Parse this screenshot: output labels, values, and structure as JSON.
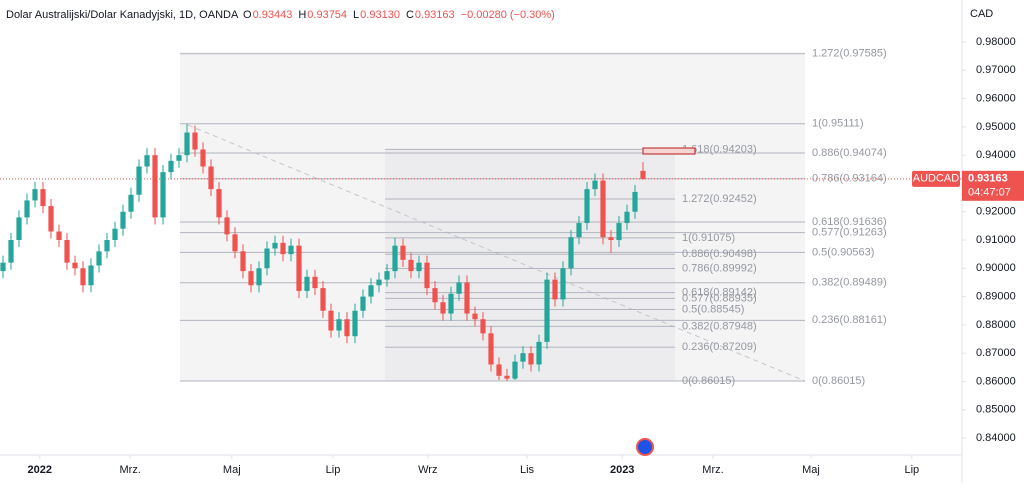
{
  "header": {
    "symbol": "Dolar Australijski/Dolar Kanadyjski, 1D, OANDA",
    "ohlc": [
      {
        "key": "O",
        "value": "0.93443"
      },
      {
        "key": "H",
        "value": "0.93754"
      },
      {
        "key": "L",
        "value": "0.93130"
      },
      {
        "key": "C",
        "value": "0.93163"
      }
    ],
    "change": "−0.00280 (−0.30%)"
  },
  "chart_data": {
    "type": "candlestick",
    "currency": "CAD",
    "up_color": "#26a69a",
    "down_color": "#ef5350",
    "grid": false,
    "categories": [
      null,
      null,
      null,
      null,
      null,
      null,
      null,
      null,
      null,
      null,
      null,
      null,
      null,
      null,
      null,
      null,
      null,
      null,
      null,
      null,
      null,
      null,
      null,
      null,
      null,
      null,
      null,
      null,
      null,
      null,
      null,
      null,
      null,
      null,
      null,
      null,
      null,
      null,
      null,
      null,
      null,
      null,
      null,
      null,
      null,
      null,
      null,
      null,
      null,
      null,
      null,
      null,
      null,
      null,
      null,
      null,
      null,
      null,
      null,
      null,
      null,
      null,
      null,
      null,
      null,
      null,
      null,
      null,
      null,
      null,
      null,
      null,
      null,
      null,
      null,
      null,
      null,
      null,
      null,
      null,
      null
    ],
    "open": [
      0.899,
      0.902,
      0.91,
      0.918,
      0.924,
      0.928,
      0.922,
      0.913,
      0.91,
      0.902,
      0.9,
      0.894,
      0.901,
      0.906,
      0.91,
      0.914,
      0.92,
      0.926,
      0.936,
      0.94,
      0.918,
      0.934,
      0.938,
      0.94,
      0.948,
      0.942,
      0.936,
      0.928,
      0.918,
      0.912,
      0.906,
      0.899,
      0.894,
      0.9,
      0.907,
      0.909,
      0.905,
      0.908,
      0.892,
      0.897,
      0.893,
      0.885,
      0.878,
      0.882,
      0.876,
      0.885,
      0.89,
      0.894,
      0.896,
      0.899,
      0.908,
      0.903,
      0.899,
      0.902,
      0.893,
      0.888,
      0.884,
      0.891,
      0.895,
      0.884,
      0.882,
      0.877,
      0.866,
      0.862,
      0.861,
      0.867,
      0.87,
      0.866,
      0.874,
      0.896,
      0.889,
      0.9,
      0.911,
      0.916,
      0.928,
      0.931,
      0.911,
      0.91,
      0.916,
      0.92,
      0.93443
    ],
    "high": [
      0.9045,
      0.9125,
      0.9205,
      0.9265,
      0.9305,
      0.9305,
      0.9245,
      0.9155,
      0.9125,
      0.9045,
      0.9025,
      0.9035,
      0.9085,
      0.9125,
      0.9165,
      0.9225,
      0.9285,
      0.9385,
      0.9425,
      0.9425,
      0.9365,
      0.9405,
      0.9425,
      0.9511,
      0.9505,
      0.9445,
      0.9385,
      0.9305,
      0.9205,
      0.9145,
      0.9085,
      0.9015,
      0.9025,
      0.9095,
      0.9115,
      0.9115,
      0.9105,
      0.9105,
      0.8995,
      0.8995,
      0.8955,
      0.8875,
      0.8845,
      0.8845,
      0.8875,
      0.8925,
      0.8965,
      0.8985,
      0.9015,
      0.9108,
      0.9105,
      0.9055,
      0.9045,
      0.9045,
      0.8955,
      0.8905,
      0.8935,
      0.8975,
      0.8975,
      0.8865,
      0.8845,
      0.8795,
      0.8685,
      0.8645,
      0.8695,
      0.8725,
      0.8725,
      0.8765,
      0.8985,
      0.8985,
      0.9025,
      0.9135,
      0.9185,
      0.9305,
      0.9335,
      0.9335,
      0.9135,
      0.9185,
      0.9225,
      0.9295,
      0.93754
    ],
    "low": [
      0.8965,
      0.8995,
      0.9075,
      0.9155,
      0.9215,
      0.9195,
      0.9105,
      0.9075,
      0.8995,
      0.8975,
      0.8915,
      0.8915,
      0.8985,
      0.9035,
      0.9075,
      0.9115,
      0.9175,
      0.9235,
      0.9335,
      0.9155,
      0.9155,
      0.9315,
      0.9355,
      0.9375,
      0.9395,
      0.9335,
      0.9255,
      0.9155,
      0.9095,
      0.9035,
      0.8965,
      0.8915,
      0.8915,
      0.8975,
      0.9045,
      0.9025,
      0.9025,
      0.8895,
      0.8895,
      0.8905,
      0.8825,
      0.8755,
      0.8755,
      0.8735,
      0.8735,
      0.8825,
      0.8875,
      0.8915,
      0.8935,
      0.8965,
      0.9005,
      0.8965,
      0.8965,
      0.8905,
      0.8855,
      0.8815,
      0.8815,
      0.8885,
      0.8815,
      0.8795,
      0.8745,
      0.8635,
      0.8605,
      0.86015,
      0.8605,
      0.8645,
      0.8635,
      0.8635,
      0.8715,
      0.8865,
      0.8865,
      0.8975,
      0.9085,
      0.9135,
      0.9255,
      0.9085,
      0.9055,
      0.9075,
      0.9135,
      0.9175,
      0.9313
    ],
    "close": [
      0.902,
      0.91,
      0.918,
      0.924,
      0.928,
      0.922,
      0.913,
      0.91,
      0.902,
      0.9,
      0.894,
      0.901,
      0.906,
      0.91,
      0.914,
      0.92,
      0.926,
      0.936,
      0.94,
      0.918,
      0.934,
      0.938,
      0.94,
      0.948,
      0.942,
      0.936,
      0.928,
      0.918,
      0.912,
      0.906,
      0.899,
      0.894,
      0.9,
      0.907,
      0.909,
      0.905,
      0.908,
      0.892,
      0.897,
      0.893,
      0.885,
      0.878,
      0.882,
      0.876,
      0.885,
      0.89,
      0.894,
      0.896,
      0.899,
      0.908,
      0.903,
      0.899,
      0.902,
      0.893,
      0.888,
      0.884,
      0.891,
      0.895,
      0.884,
      0.882,
      0.877,
      0.866,
      0.862,
      0.861,
      0.867,
      0.87,
      0.866,
      0.874,
      0.896,
      0.889,
      0.9,
      0.911,
      0.916,
      0.928,
      0.931,
      0.911,
      0.91,
      0.916,
      0.92,
      0.927,
      0.93163
    ],
    "xlim": [
      -0.375,
      119.875
    ],
    "xticks": [
      {
        "value": 4.6,
        "label": "2022"
      },
      {
        "value": 15.9,
        "label": "Mrz."
      },
      {
        "value": 28.6,
        "label": "Maj"
      },
      {
        "value": 41.25,
        "label": "Lip"
      },
      {
        "value": 53.1,
        "label": "Wrz"
      },
      {
        "value": 65.5,
        "label": "Lis"
      },
      {
        "value": 77.4,
        "label": "2023"
      },
      {
        "value": 88.75,
        "label": "Mrz."
      },
      {
        "value": 101,
        "label": "Maj"
      },
      {
        "value": 113.6,
        "label": "Lip"
      }
    ],
    "ylim": [
      0.834,
      0.99485
    ],
    "yticks": [
      {
        "value": 0.84,
        "label": "0.84000"
      },
      {
        "value": 0.85,
        "label": "0.85000"
      },
      {
        "value": 0.86,
        "label": "0.86000"
      },
      {
        "value": 0.87,
        "label": "0.87000"
      },
      {
        "value": 0.88,
        "label": "0.88000"
      },
      {
        "value": 0.89,
        "label": "0.89000"
      },
      {
        "value": 0.9,
        "label": "0.90000"
      },
      {
        "value": 0.91,
        "label": "0.91000"
      },
      {
        "value": 0.92,
        "label": "0.92000"
      },
      {
        "value": 0.93,
        "label": "0.93000"
      },
      {
        "value": 0.94,
        "label": "0.94000"
      },
      {
        "value": 0.95,
        "label": "0.95000"
      },
      {
        "value": 0.96,
        "label": "0.96000"
      },
      {
        "value": 0.97,
        "label": "0.97000"
      },
      {
        "value": 0.98,
        "label": "0.98000"
      }
    ],
    "last_price": {
      "symbol": "AUDCAD",
      "value": 0.93163,
      "countdown": "04:47:07"
    },
    "fibs": [
      {
        "levels": [
          {
            "label": "1.272(0.97585)",
            "value": 0.97585
          },
          {
            "label": "1(0.95111)",
            "value": 0.95111
          },
          {
            "label": "0.886(0.94074)",
            "value": 0.94074
          },
          {
            "label": "0.786(0.93164)",
            "value": 0.93164
          },
          {
            "label": "0.618(0.91636)",
            "value": 0.91636
          },
          {
            "label": "0.577(0.91263)",
            "value": 0.91263
          },
          {
            "label": "0.5(0.90563)",
            "value": 0.90563
          },
          {
            "label": "0.382(0.89489)",
            "value": 0.89489
          },
          {
            "label": "0.236(0.88161)",
            "value": 0.88161
          },
          {
            "label": "0(0.86015)",
            "value": 0.86015
          }
        ]
      },
      {
        "levels": [
          {
            "label": "1.618(0.94203)",
            "value": 0.94203
          },
          {
            "label": "1.272(0.92452)",
            "value": 0.92452
          },
          {
            "label": "1(0.91075)",
            "value": 0.91075
          },
          {
            "label": "0.886(0.90498)",
            "value": 0.90498
          },
          {
            "label": "0.786(0.89992)",
            "value": 0.89992
          },
          {
            "label": "0.618(0.89142)",
            "value": 0.89142
          },
          {
            "label": "0.577(0.88935)",
            "value": 0.88935
          },
          {
            "label": "0.5(0.88545)",
            "value": 0.88545
          },
          {
            "label": "0.382(0.87948)",
            "value": 0.87948
          },
          {
            "label": "0.236(0.87209)",
            "value": 0.87209
          },
          {
            "label": "0(0.86015)",
            "value": 0.86015
          }
        ]
      }
    ]
  }
}
